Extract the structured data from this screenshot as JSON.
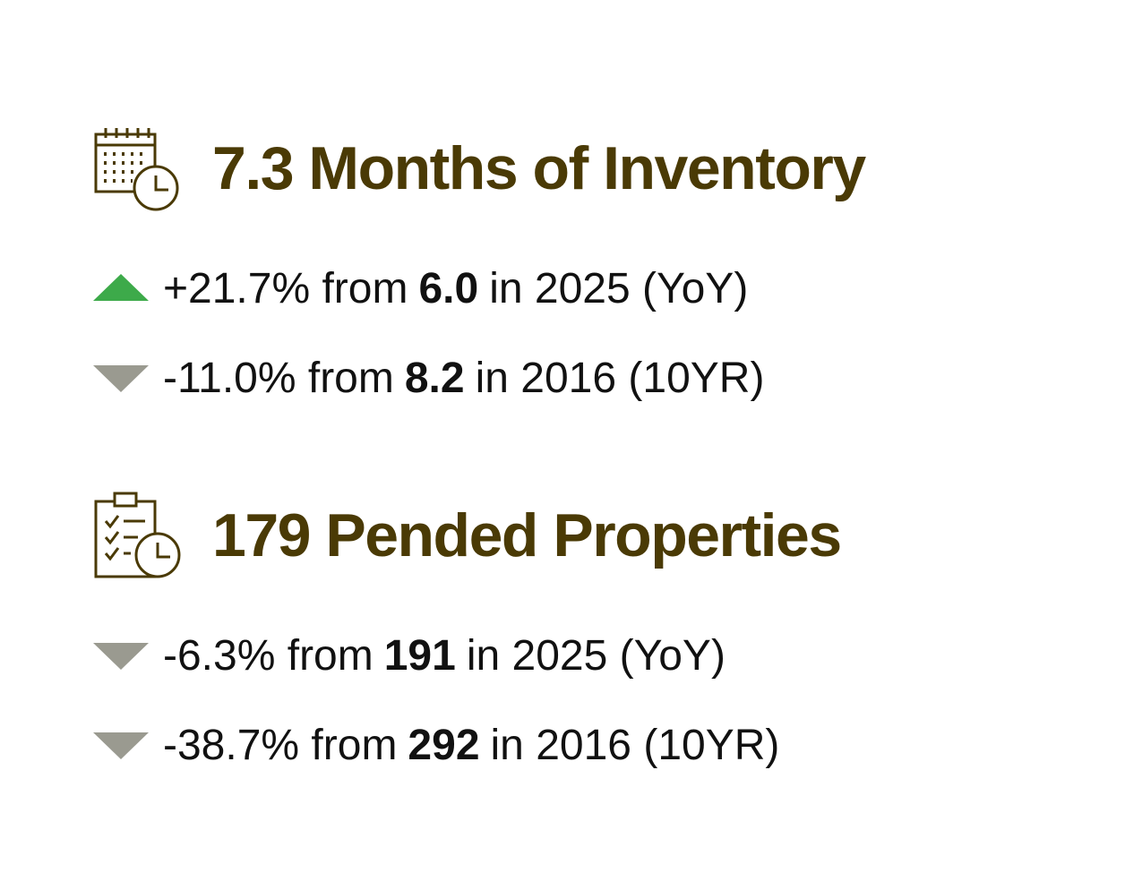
{
  "sections": [
    {
      "title": "7.3 Months of Inventory",
      "rows": [
        {
          "trend": "up",
          "color": "#3daa4a",
          "change": "+21.7% from",
          "base": "6.0",
          "period": "in 2025 (YoY)"
        },
        {
          "trend": "down",
          "color": "#9a9a90",
          "change": "-11.0% from",
          "base": "8.2",
          "period": "in 2016 (10YR)"
        }
      ]
    },
    {
      "title": "179 Pended Properties",
      "rows": [
        {
          "trend": "down",
          "color": "#9a9a90",
          "change": "-6.3% from",
          "base": "191",
          "period": "in 2025 (YoY)"
        },
        {
          "trend": "down",
          "color": "#9a9a90",
          "change": "-38.7% from",
          "base": "292",
          "period": "in 2016 (10YR)"
        }
      ]
    }
  ]
}
